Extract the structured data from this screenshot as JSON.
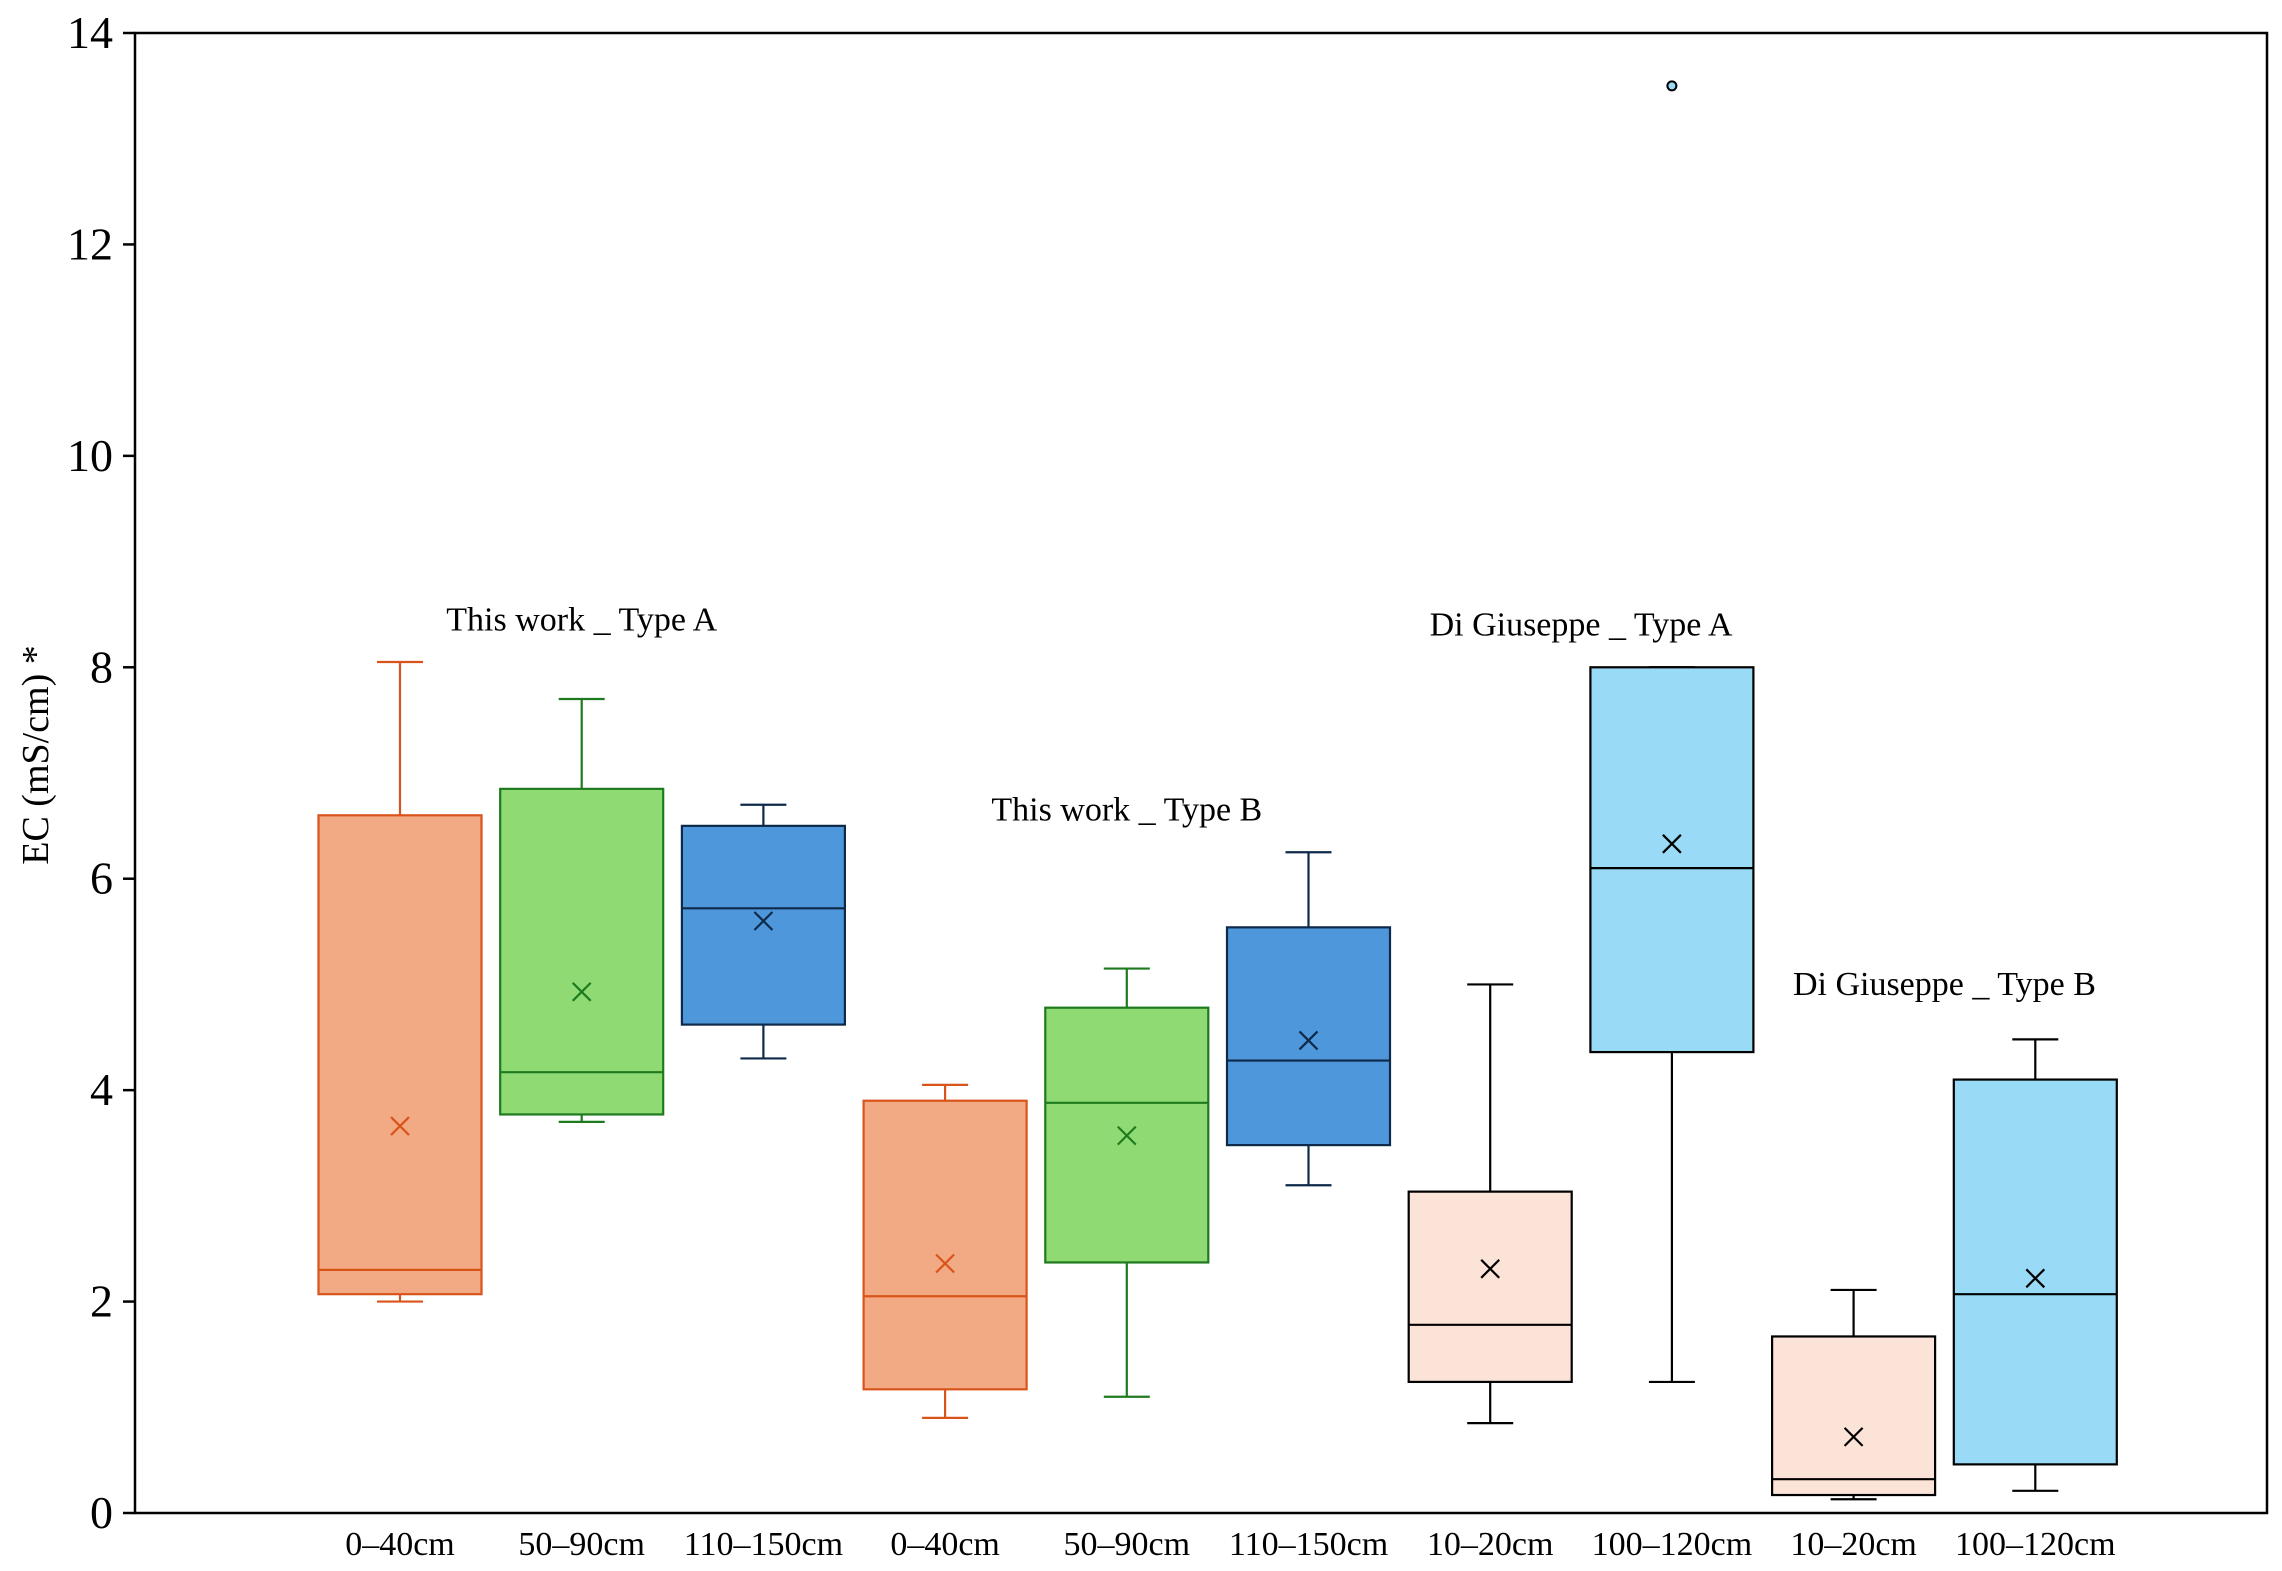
{
  "chart_data": {
    "type": "boxplot",
    "title": "",
    "xlabel": "",
    "ylabel": "EC (mS/cm) *",
    "ylim": [
      0,
      14
    ],
    "yticks": [
      0,
      2,
      4,
      6,
      8,
      10,
      12,
      14
    ],
    "grid": false,
    "legend": "none",
    "colors": {
      "orange_fill": "#F2AA84",
      "orange_line": "#D9541A",
      "green_fill": "#8FDA73",
      "green_line": "#1E7A1E",
      "blue_fill": "#4F97DB",
      "blue_line": "#0D2A4A",
      "peach_fill": "#FCE3D7",
      "lightblue_fill": "#99DBF6",
      "black_line": "#000000"
    },
    "boxes": [
      {
        "category": "0–40cm",
        "group": "This work _ Type A",
        "min": 2.0,
        "q1": 2.07,
        "median": 2.3,
        "q3": 6.6,
        "max": 8.05,
        "mean": 3.66,
        "fill": "#F2AA84",
        "line": "#D9541A",
        "outliers": []
      },
      {
        "category": "50–90cm",
        "group": "This work _ Type A",
        "min": 3.7,
        "q1": 3.77,
        "median": 4.17,
        "q3": 6.85,
        "max": 7.7,
        "mean": 4.93,
        "fill": "#8FDA73",
        "line": "#1E7A1E",
        "outliers": []
      },
      {
        "category": "110–150cm",
        "group": "This work _ Type A",
        "min": 4.3,
        "q1": 4.62,
        "median": 5.72,
        "q3": 6.5,
        "max": 6.7,
        "mean": 5.6,
        "fill": "#4F97DB",
        "line": "#0D2A4A",
        "outliers": []
      },
      {
        "category": "0–40cm",
        "group": "This work _ Type B",
        "min": 0.9,
        "q1": 1.17,
        "median": 2.05,
        "q3": 3.9,
        "max": 4.05,
        "mean": 2.36,
        "fill": "#F2AA84",
        "line": "#D9541A",
        "outliers": []
      },
      {
        "category": "50–90cm",
        "group": "This work _ Type B",
        "min": 1.1,
        "q1": 2.37,
        "median": 3.88,
        "q3": 4.78,
        "max": 5.15,
        "mean": 3.57,
        "fill": "#8FDA73",
        "line": "#1E7A1E",
        "outliers": []
      },
      {
        "category": "110–150cm",
        "group": "This work _ Type B",
        "min": 3.1,
        "q1": 3.48,
        "median": 4.28,
        "q3": 5.54,
        "max": 6.25,
        "mean": 4.47,
        "fill": "#4F97DB",
        "line": "#0D2A4A",
        "outliers": []
      },
      {
        "category": "10–20cm",
        "group": "Di Giuseppe _ Type A",
        "min": 0.85,
        "q1": 1.24,
        "median": 1.78,
        "q3": 3.04,
        "max": 5.0,
        "mean": 2.31,
        "fill": "#FCE3D7",
        "line": "#000000",
        "outliers": []
      },
      {
        "category": "100–120cm",
        "group": "Di Giuseppe _ Type A",
        "min": 1.24,
        "q1": 4.36,
        "median": 6.1,
        "q3": 8.0,
        "max": 8.0,
        "mean": 6.33,
        "fill": "#99DBF6",
        "line": "#000000",
        "outliers": [
          13.5
        ]
      },
      {
        "category": "10–20cm",
        "group": "Di Giuseppe _ Type B",
        "min": 0.13,
        "q1": 0.17,
        "median": 0.32,
        "q3": 1.67,
        "max": 2.11,
        "mean": 0.72,
        "fill": "#FCE3D7",
        "line": "#000000",
        "outliers": []
      },
      {
        "category": "100–120cm",
        "group": "Di Giuseppe _ Type B",
        "min": 0.21,
        "q1": 0.46,
        "median": 2.07,
        "q3": 4.1,
        "max": 4.48,
        "mean": 2.22,
        "fill": "#99DBF6",
        "line": "#000000",
        "outliers": []
      }
    ],
    "annotations": [
      {
        "text": "This work _ Type A",
        "x_at_box": 1.0,
        "y": 8.35
      },
      {
        "text": "This work _ Type B",
        "x_at_box": 4.0,
        "y": 6.55
      },
      {
        "text": "Di Giuseppe _ Type A",
        "x_at_box": 6.5,
        "y": 8.3
      },
      {
        "text": "Di Giuseppe _ Type B",
        "x_at_box": 8.5,
        "y": 4.9
      }
    ]
  }
}
